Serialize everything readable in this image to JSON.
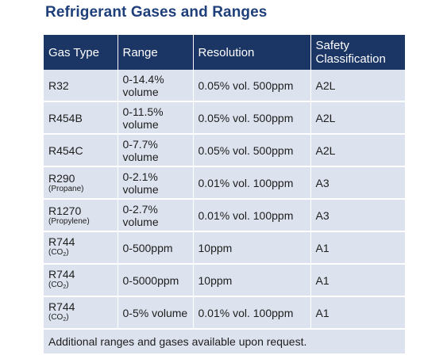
{
  "title": "Refrigerant Gases and Ranges",
  "table": {
    "headers": [
      "Gas Type",
      "Range",
      "Resolution",
      "Safety Classification"
    ],
    "rows": [
      {
        "gas": "R32",
        "gas_sub": "",
        "range": "0-14.4% volume",
        "resolution": "0.05% vol. 500ppm",
        "safety": "A2L"
      },
      {
        "gas": "R454B",
        "gas_sub": "",
        "range": "0-11.5% volume",
        "resolution": "0.05% vol. 500ppm",
        "safety": "A2L"
      },
      {
        "gas": "R454C",
        "gas_sub": "",
        "range": "0-7.7% volume",
        "resolution": "0.05% vol. 500ppm",
        "safety": "A2L"
      },
      {
        "gas": "R290",
        "gas_sub": "(Propane)",
        "range": "0-2.1% volume",
        "resolution": "0.01% vol. 100ppm",
        "safety": "A3"
      },
      {
        "gas": "R1270",
        "gas_sub": "(Propylene)",
        "range": "0-2.7% volume",
        "resolution": "0.01% vol. 100ppm",
        "safety": "A3"
      },
      {
        "gas": "R744",
        "gas_sub": "(CO2)",
        "range": "0-500ppm",
        "resolution": "10ppm",
        "safety": "A1"
      },
      {
        "gas": "R744",
        "gas_sub": "(CO2)",
        "range": "0-5000ppm",
        "resolution": "10ppm",
        "safety": "A1"
      },
      {
        "gas": "R744",
        "gas_sub": "(CO2)",
        "range": "0-5% volume",
        "resolution": "0.01% vol. 100ppm",
        "safety": "A1"
      }
    ],
    "footnote": "Additional ranges and gases available upon request."
  },
  "colors": {
    "title": "#1f3f7a",
    "header_bg": "#1b3565",
    "cell_bg": "#dde3ee"
  }
}
